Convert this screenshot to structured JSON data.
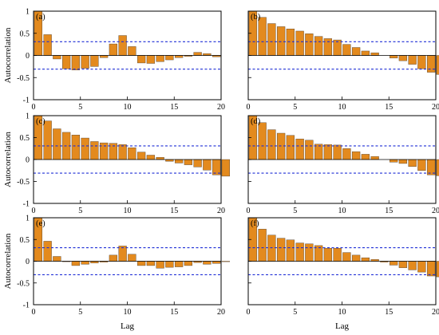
{
  "figure": {
    "ylabel": "Autocorrelation",
    "xlabel": "Lag",
    "bar_color": "#E38A1E",
    "bar_edge_color": "#4a3a2a",
    "confidence_line_color": "#1f2fd6"
  },
  "chart_data": [
    {
      "type": "bar",
      "panel_label": "(a)",
      "x": [
        0,
        1,
        2,
        3,
        4,
        5,
        6,
        7,
        8,
        9,
        10,
        11,
        12,
        13,
        14,
        15,
        16,
        17,
        18,
        19,
        20
      ],
      "values": [
        1.0,
        0.47,
        -0.08,
        -0.3,
        -0.33,
        -0.29,
        -0.25,
        -0.05,
        0.26,
        0.45,
        0.2,
        -0.17,
        -0.18,
        -0.14,
        -0.1,
        -0.05,
        -0.02,
        0.07,
        0.04,
        -0.03,
        0
      ],
      "confidence_bounds": [
        0.31,
        -0.31
      ],
      "xlim": [
        0,
        20
      ],
      "ylim": [
        -1,
        1
      ],
      "xticks": [
        "0",
        "5",
        "10",
        "15",
        "20"
      ],
      "yticks": [
        "-1",
        "-0.5",
        "0",
        "0.5",
        "1"
      ],
      "xlabel": "",
      "ylabel": "Autocorrelation"
    },
    {
      "type": "bar",
      "panel_label": "(b)",
      "x": [
        0,
        1,
        2,
        3,
        4,
        5,
        6,
        7,
        8,
        9,
        10,
        11,
        12,
        13,
        14,
        15,
        16,
        17,
        18,
        19,
        20
      ],
      "values": [
        1.0,
        0.86,
        0.72,
        0.65,
        0.6,
        0.55,
        0.49,
        0.43,
        0.38,
        0.35,
        0.25,
        0.18,
        0.1,
        0.06,
        0.0,
        -0.06,
        -0.12,
        -0.2,
        -0.3,
        -0.38,
        -0.43
      ],
      "confidence_bounds": [
        0.31,
        -0.31
      ],
      "xlim": [
        0,
        20
      ],
      "ylim": [
        -1,
        1
      ],
      "xticks": [
        "0",
        "5",
        "10",
        "15",
        "20"
      ],
      "yticks": [],
      "xlabel": "",
      "ylabel": ""
    },
    {
      "type": "bar",
      "panel_label": "(c)",
      "x": [
        0,
        1,
        2,
        3,
        4,
        5,
        6,
        7,
        8,
        9,
        10,
        11,
        12,
        13,
        14,
        15,
        16,
        17,
        18,
        19,
        20
      ],
      "values": [
        1.0,
        0.88,
        0.7,
        0.62,
        0.56,
        0.49,
        0.41,
        0.38,
        0.37,
        0.34,
        0.27,
        0.17,
        0.1,
        0.05,
        -0.04,
        -0.08,
        -0.12,
        -0.17,
        -0.24,
        -0.35,
        -0.38
      ],
      "confidence_bounds": [
        0.31,
        -0.31
      ],
      "xlim": [
        0,
        20
      ],
      "ylim": [
        -1,
        1
      ],
      "xticks": [
        "0",
        "5",
        "10",
        "15",
        "20"
      ],
      "yticks": [
        "-1",
        "-0.5",
        "0",
        "0.5",
        "1"
      ],
      "xlabel": "",
      "ylabel": "Autocorrelation"
    },
    {
      "type": "bar",
      "panel_label": "(d)",
      "x": [
        0,
        1,
        2,
        3,
        4,
        5,
        6,
        7,
        8,
        9,
        10,
        11,
        12,
        13,
        14,
        15,
        16,
        17,
        18,
        19,
        20
      ],
      "values": [
        1.0,
        0.84,
        0.68,
        0.6,
        0.55,
        0.47,
        0.44,
        0.35,
        0.34,
        0.33,
        0.25,
        0.18,
        0.12,
        0.07,
        0.0,
        -0.06,
        -0.09,
        -0.16,
        -0.25,
        -0.35,
        -0.37
      ],
      "confidence_bounds": [
        0.31,
        -0.31
      ],
      "xlim": [
        0,
        20
      ],
      "ylim": [
        -1,
        1
      ],
      "xticks": [
        "0",
        "5",
        "10",
        "15",
        "20"
      ],
      "yticks": [],
      "xlabel": "",
      "ylabel": ""
    },
    {
      "type": "bar",
      "panel_label": "(e)",
      "x": [
        0,
        1,
        2,
        3,
        4,
        5,
        6,
        7,
        8,
        9,
        10,
        11,
        12,
        13,
        14,
        15,
        16,
        17,
        18,
        19,
        20
      ],
      "values": [
        1.0,
        0.46,
        0.11,
        -0.01,
        -0.1,
        -0.07,
        -0.04,
        -0.02,
        0.14,
        0.35,
        0.16,
        -0.1,
        -0.1,
        -0.16,
        -0.14,
        -0.13,
        -0.1,
        -0.03,
        -0.07,
        -0.05,
        -0.01
      ],
      "confidence_bounds": [
        0.31,
        -0.31
      ],
      "xlim": [
        0,
        20
      ],
      "ylim": [
        -1,
        1
      ],
      "xticks": [
        "0",
        "5",
        "10",
        "15",
        "20"
      ],
      "yticks": [
        "-1",
        "-0.5",
        "0",
        "0.5",
        "1"
      ],
      "xlabel": "Lag",
      "ylabel": "Autocorrelation"
    },
    {
      "type": "bar",
      "panel_label": "(f)",
      "x": [
        0,
        1,
        2,
        3,
        4,
        5,
        6,
        7,
        8,
        9,
        10,
        11,
        12,
        13,
        14,
        15,
        16,
        17,
        18,
        19,
        20
      ],
      "values": [
        1.0,
        0.74,
        0.6,
        0.53,
        0.49,
        0.42,
        0.4,
        0.36,
        0.3,
        0.3,
        0.2,
        0.14,
        0.08,
        0.04,
        -0.02,
        -0.09,
        -0.15,
        -0.2,
        -0.25,
        -0.34,
        -0.36
      ],
      "confidence_bounds": [
        0.31,
        -0.31
      ],
      "xlim": [
        0,
        20
      ],
      "ylim": [
        -1,
        1
      ],
      "xticks": [
        "0",
        "5",
        "10",
        "15",
        "20"
      ],
      "yticks": [],
      "xlabel": "Lag",
      "ylabel": ""
    }
  ]
}
